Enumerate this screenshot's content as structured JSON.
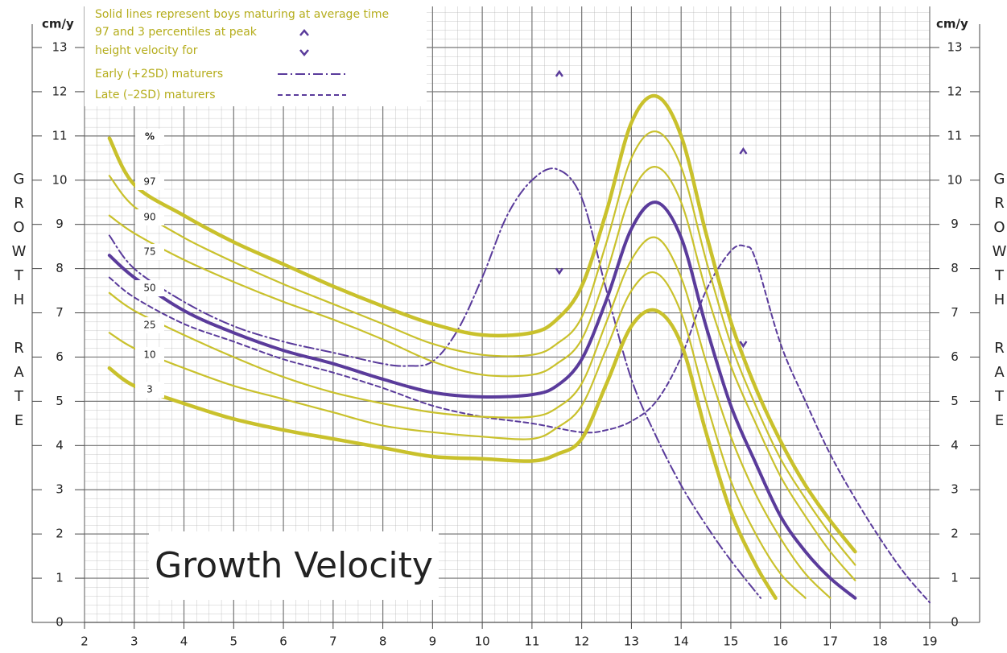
{
  "chart_data": {
    "type": "line",
    "title": "Growth Velocity",
    "y_label": "GROWTH RATE",
    "y_unit": "cm/y",
    "legend_texts": [
      "Solid lines represent boys maturing at average time",
      "97 and 3 percentiles at peak",
      "height velocity for"
    ],
    "percentile_header": "%",
    "xlim": [
      2,
      19
    ],
    "xticks": [
      2,
      3,
      4,
      5,
      6,
      7,
      8,
      9,
      10,
      11,
      12,
      13,
      14,
      15,
      16,
      17,
      18,
      19
    ],
    "ylim": [
      0,
      13
    ],
    "yticks": [
      0,
      1,
      2,
      3,
      4,
      5,
      6,
      7,
      8,
      9,
      10,
      11,
      12,
      13
    ],
    "grid": true,
    "series": [
      {
        "name": "97",
        "color": "#c9c12c",
        "width": 4.5,
        "dash": "solid",
        "x": [
          2.5,
          3,
          4,
          5,
          6,
          7,
          8,
          9,
          10,
          11,
          11.5,
          12,
          12.5,
          13,
          13.5,
          14,
          14.5,
          15,
          15.5,
          16,
          16.5,
          17,
          17.5
        ],
        "values": [
          10.95,
          9.9,
          9.2,
          8.6,
          8.1,
          7.6,
          7.15,
          6.75,
          6.5,
          6.55,
          6.85,
          7.6,
          9.3,
          11.3,
          11.9,
          11.0,
          8.8,
          6.8,
          5.3,
          4.1,
          3.1,
          2.3,
          1.6
        ]
      },
      {
        "name": "90",
        "color": "#c9c12c",
        "width": 2.2,
        "dash": "solid",
        "x": [
          2.5,
          3,
          4,
          5,
          6,
          7,
          8,
          9,
          10,
          11,
          11.5,
          12,
          12.5,
          13,
          13.5,
          14,
          14.5,
          15,
          15.5,
          16,
          16.5,
          17,
          17.5
        ],
        "values": [
          10.1,
          9.4,
          8.7,
          8.15,
          7.65,
          7.2,
          6.75,
          6.3,
          6.05,
          6.05,
          6.3,
          6.9,
          8.6,
          10.5,
          11.1,
          10.3,
          8.2,
          6.3,
          4.9,
          3.7,
          2.8,
          2.0,
          1.3
        ]
      },
      {
        "name": "75",
        "color": "#c9c12c",
        "width": 2.2,
        "dash": "solid",
        "x": [
          2.5,
          3,
          4,
          5,
          6,
          7,
          8,
          9,
          10,
          11,
          11.5,
          12,
          12.5,
          13,
          13.5,
          14,
          14.5,
          15,
          15.5,
          16,
          16.5,
          17,
          17.5
        ],
        "values": [
          9.2,
          8.8,
          8.2,
          7.7,
          7.25,
          6.85,
          6.4,
          5.9,
          5.6,
          5.6,
          5.85,
          6.4,
          7.9,
          9.7,
          10.3,
          9.5,
          7.5,
          5.8,
          4.5,
          3.3,
          2.4,
          1.6,
          0.95
        ]
      },
      {
        "name": "50",
        "color": "#5a3b9b",
        "width": 4,
        "dash": "solid",
        "x": [
          2.5,
          3,
          4,
          5,
          6,
          7,
          8,
          9,
          10,
          11,
          11.5,
          12,
          12.5,
          13,
          13.5,
          14,
          14.5,
          15,
          15.5,
          16,
          16.5,
          17,
          17.5
        ],
        "values": [
          8.3,
          7.8,
          7.05,
          6.55,
          6.15,
          5.85,
          5.5,
          5.2,
          5.1,
          5.15,
          5.35,
          5.95,
          7.3,
          8.9,
          9.5,
          8.7,
          6.7,
          4.9,
          3.6,
          2.4,
          1.6,
          1.0,
          0.55
        ]
      },
      {
        "name": "25",
        "color": "#c9c12c",
        "width": 2.2,
        "dash": "solid",
        "x": [
          2.5,
          3,
          4,
          5,
          6,
          7,
          8,
          9,
          10,
          11,
          11.5,
          12,
          12.5,
          13,
          13.5,
          14,
          14.5,
          15,
          15.5,
          16,
          16.5,
          17
        ],
        "values": [
          7.45,
          7.05,
          6.5,
          6.0,
          5.55,
          5.2,
          4.95,
          4.75,
          4.65,
          4.65,
          4.85,
          5.4,
          6.8,
          8.2,
          8.7,
          7.8,
          5.9,
          4.2,
          2.9,
          1.9,
          1.1,
          0.55
        ]
      },
      {
        "name": "10",
        "color": "#c9c12c",
        "width": 2.2,
        "dash": "solid",
        "x": [
          2.5,
          3,
          4,
          5,
          6,
          7,
          8,
          9,
          10,
          11,
          11.5,
          12,
          12.5,
          13,
          13.5,
          14,
          14.5,
          15,
          15.5,
          16,
          16.5
        ],
        "values": [
          6.55,
          6.2,
          5.75,
          5.35,
          5.05,
          4.75,
          4.45,
          4.3,
          4.2,
          4.15,
          4.4,
          4.9,
          6.2,
          7.5,
          7.9,
          7.0,
          5.0,
          3.2,
          2.0,
          1.1,
          0.55
        ]
      },
      {
        "name": "3",
        "color": "#c9c12c",
        "width": 4.5,
        "dash": "solid",
        "x": [
          2.5,
          3,
          4,
          5,
          6,
          7,
          8,
          9,
          10,
          11,
          11.5,
          12,
          12.5,
          13,
          13.5,
          14,
          14.5,
          15,
          15.5,
          15.9
        ],
        "values": [
          5.75,
          5.35,
          4.95,
          4.6,
          4.35,
          4.15,
          3.95,
          3.75,
          3.7,
          3.65,
          3.8,
          4.15,
          5.4,
          6.7,
          7.05,
          6.3,
          4.3,
          2.5,
          1.3,
          0.55
        ]
      },
      {
        "name": "Early (+2SD) maturers",
        "color": "#5a3b9b",
        "width": 2,
        "dash": "dashdot",
        "x": [
          2.5,
          3,
          4,
          5,
          6,
          7,
          8,
          8.5,
          9,
          9.5,
          10,
          10.5,
          11,
          11.5,
          12,
          12.5,
          13,
          13.5,
          14,
          14.5,
          15,
          15.6
        ],
        "values": [
          8.75,
          8.0,
          7.25,
          6.7,
          6.35,
          6.1,
          5.85,
          5.8,
          5.9,
          6.6,
          7.8,
          9.2,
          10.0,
          10.25,
          9.6,
          7.5,
          5.5,
          4.2,
          3.1,
          2.2,
          1.4,
          0.55
        ]
      },
      {
        "name": "Late (–2SD) maturers",
        "color": "#5a3b9b",
        "width": 2,
        "dash": "dashed",
        "x": [
          2.5,
          3,
          4,
          5,
          6,
          7,
          8,
          9,
          10,
          11,
          12,
          12.5,
          13,
          13.5,
          14,
          14.5,
          15,
          15.3,
          15.5,
          16,
          16.5,
          17,
          17.5,
          18,
          18.5,
          19
        ],
        "values": [
          7.8,
          7.35,
          6.75,
          6.35,
          5.95,
          5.65,
          5.3,
          4.9,
          4.65,
          4.5,
          4.3,
          4.35,
          4.55,
          5.0,
          6.0,
          7.5,
          8.4,
          8.5,
          8.2,
          6.3,
          5.0,
          3.8,
          2.8,
          1.9,
          1.1,
          0.45
        ]
      }
    ],
    "peak_markers": {
      "color": "#5a3b9b",
      "x": [
        11.55,
        11.55,
        15.25,
        15.25
      ],
      "values": [
        12.4,
        7.95,
        10.65,
        6.3
      ],
      "direction": [
        "up",
        "down",
        "up",
        "down"
      ]
    }
  }
}
